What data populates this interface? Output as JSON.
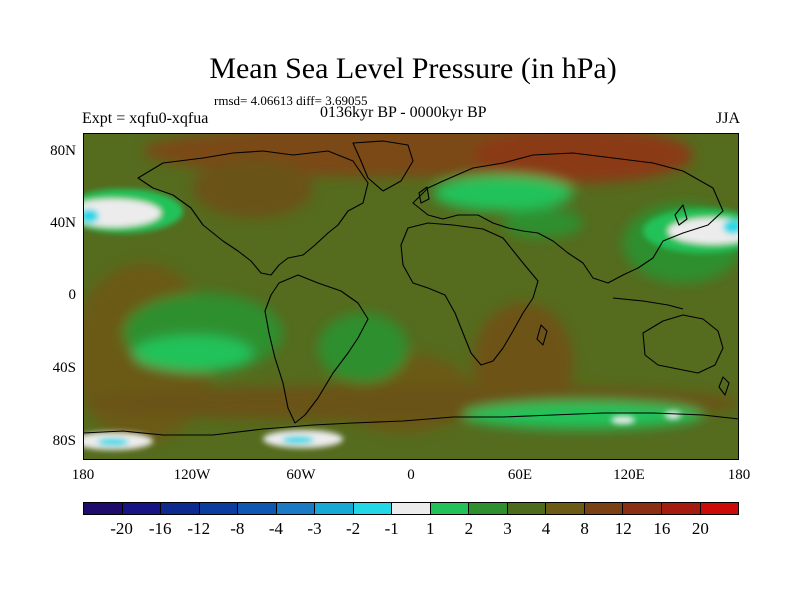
{
  "title": "Mean Sea Level Pressure (in hPa)",
  "stats": "rmsd= 4.06613 diff= 3.69055",
  "experiment": "Expt = xqfu0-xqfua",
  "period": "0136kyr BP - 0000kyr BP",
  "season": "JJA",
  "lat_labels": [
    "80N",
    "40N",
    "0",
    "40S",
    "80S"
  ],
  "lon_labels": [
    "180",
    "120W",
    "60W",
    "0",
    "60E",
    "120E",
    "180"
  ],
  "colorbar": {
    "labels": [
      "-20",
      "-16",
      "-12",
      "-8",
      "-4",
      "-3",
      "-2",
      "-1",
      "1",
      "2",
      "3",
      "4",
      "8",
      "12",
      "16",
      "20"
    ],
    "colors": [
      "#1e0b6b",
      "#171585",
      "#0c2a8f",
      "#0b3d9f",
      "#0f58b2",
      "#1a7ac6",
      "#17a9d6",
      "#22d8e6",
      "#ececec",
      "#22c25a",
      "#2f8f2e",
      "#4c6c1c",
      "#6b5b14",
      "#7a4214",
      "#8a2f14",
      "#a51b10",
      "#cc0a08"
    ]
  }
}
